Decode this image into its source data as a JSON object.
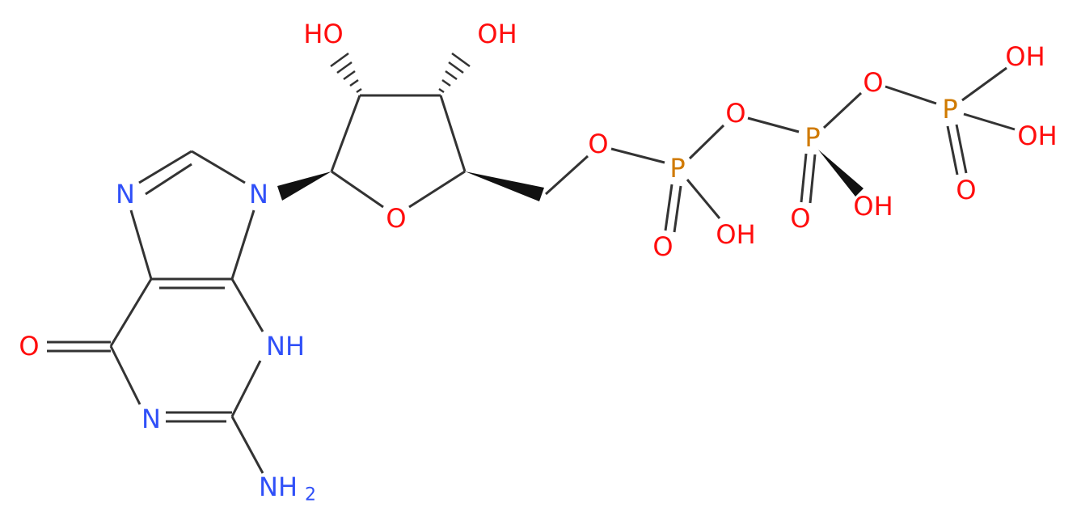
{
  "atoms": [
    {
      "label": "N"
    },
    {
      "label": "N"
    },
    {
      "label": "O"
    },
    {
      "label": "NH"
    },
    {
      "label": "N"
    },
    {
      "label": "NH",
      "subscript": "2"
    },
    {
      "label": "O"
    },
    {
      "label": "HO"
    },
    {
      "label": "OH"
    },
    {
      "label": "O"
    },
    {
      "label": "P"
    },
    {
      "label": "O"
    },
    {
      "label": "OH"
    },
    {
      "label": "O"
    },
    {
      "label": "P"
    },
    {
      "label": "O"
    },
    {
      "label": "OH"
    },
    {
      "label": "O"
    },
    {
      "label": "P"
    },
    {
      "label": "OH"
    },
    {
      "label": "OH"
    },
    {
      "label": "O"
    }
  ]
}
